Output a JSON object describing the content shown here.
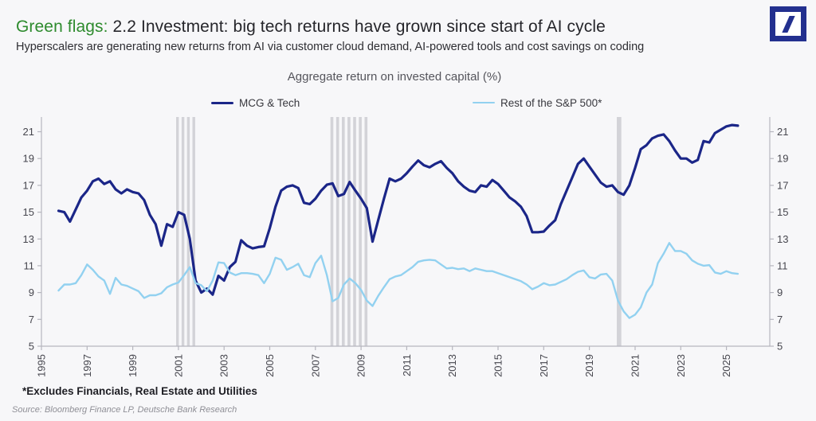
{
  "header": {
    "title_highlight": "Green flags:",
    "title_rest": " 2.2 Investment: big tech returns have grown since start of AI cycle",
    "subtitle": "Hyperscalers are generating new returns from AI via customer cloud demand, AI-powered tools and cost savings on coding",
    "logo_icon": "deutsche-bank-slash-icon",
    "logo_color": "#23308f"
  },
  "chart_data": {
    "type": "line",
    "title": "Aggregate return on invested capital (%)",
    "x_unit": "year, quarterly observations",
    "x_start": 1995.75,
    "x_step": 0.25,
    "xlim": [
      1995,
      2026.9
    ],
    "ylim": [
      5,
      22.1
    ],
    "yticks": [
      5,
      7,
      9,
      11,
      13,
      15,
      17,
      19,
      21
    ],
    "xticks": [
      1995,
      1997,
      1999,
      2001,
      2003,
      2005,
      2007,
      2009,
      2011,
      2013,
      2015,
      2017,
      2019,
      2021,
      2023,
      2025
    ],
    "grid": false,
    "legend_position": "top",
    "axis_color": "#b6b6be",
    "tick_label_color": "#46464e",
    "recession_band_color": "#d3d3d8",
    "recessions": [
      {
        "start": 2000.9,
        "end": 2001.85,
        "stripes": 4
      },
      {
        "start": 2007.66,
        "end": 2009.4,
        "stripes": 7
      },
      {
        "start": 2020.2,
        "end": 2020.45,
        "stripes": 1
      }
    ],
    "series": [
      {
        "name": "MCG & Tech",
        "color": "#1b2688",
        "width": 3.2,
        "values": [
          15.1,
          15.0,
          14.3,
          15.2,
          16.1,
          16.6,
          17.3,
          17.5,
          17.1,
          17.3,
          16.7,
          16.4,
          16.7,
          16.5,
          16.4,
          15.9,
          14.8,
          14.1,
          12.5,
          14.1,
          13.9,
          15.0,
          14.8,
          13.0,
          9.9,
          9.0,
          9.3,
          8.85,
          10.25,
          9.9,
          10.9,
          11.3,
          12.9,
          12.5,
          12.3,
          12.4,
          12.45,
          13.8,
          15.4,
          16.6,
          16.9,
          17.0,
          16.8,
          15.7,
          15.6,
          16.0,
          16.6,
          17.05,
          17.15,
          16.2,
          16.35,
          17.25,
          16.6,
          16.0,
          15.3,
          12.8,
          14.4,
          16.0,
          17.5,
          17.3,
          17.5,
          17.9,
          18.4,
          18.85,
          18.5,
          18.35,
          18.6,
          18.8,
          18.3,
          17.9,
          17.3,
          16.9,
          16.6,
          16.5,
          17.0,
          16.9,
          17.4,
          17.1,
          16.6,
          16.1,
          15.8,
          15.4,
          14.7,
          13.5,
          13.5,
          13.55,
          14.0,
          14.4,
          15.6,
          16.6,
          17.6,
          18.6,
          19.0,
          18.4,
          17.8,
          17.2,
          16.9,
          17.0,
          16.5,
          16.3,
          17.0,
          18.3,
          19.7,
          20.0,
          20.5,
          20.7,
          20.8,
          20.3,
          19.6,
          19.0,
          19.0,
          18.7,
          18.9,
          20.3,
          20.2,
          20.9,
          21.15,
          21.4,
          21.5,
          21.45
        ]
      },
      {
        "name": "Rest of the S&P 500*",
        "color": "#92d1f0",
        "width": 2.4,
        "values": [
          9.15,
          9.6,
          9.6,
          9.7,
          10.3,
          11.1,
          10.7,
          10.2,
          9.9,
          8.9,
          10.1,
          9.6,
          9.5,
          9.3,
          9.1,
          8.6,
          8.8,
          8.8,
          8.95,
          9.4,
          9.6,
          9.75,
          10.3,
          10.9,
          9.7,
          9.55,
          9.1,
          9.9,
          11.25,
          11.2,
          10.5,
          10.3,
          10.45,
          10.45,
          10.4,
          10.3,
          9.7,
          10.4,
          11.6,
          11.45,
          10.7,
          10.9,
          11.15,
          10.3,
          10.15,
          11.2,
          11.75,
          10.3,
          8.35,
          8.6,
          9.6,
          10.05,
          9.7,
          9.2,
          8.4,
          8.0,
          8.75,
          9.4,
          10.0,
          10.2,
          10.3,
          10.6,
          10.9,
          11.3,
          11.4,
          11.45,
          11.4,
          11.1,
          10.8,
          10.85,
          10.75,
          10.8,
          10.6,
          10.8,
          10.7,
          10.6,
          10.6,
          10.45,
          10.3,
          10.15,
          10.0,
          9.85,
          9.6,
          9.25,
          9.45,
          9.7,
          9.55,
          9.6,
          9.8,
          10.0,
          10.3,
          10.55,
          10.65,
          10.15,
          10.05,
          10.35,
          10.4,
          9.9,
          8.4,
          7.6,
          7.1,
          7.35,
          7.9,
          9.0,
          9.6,
          11.2,
          11.9,
          12.7,
          12.1,
          12.1,
          11.9,
          11.4,
          11.15,
          11.0,
          11.05,
          10.5,
          10.4,
          10.6,
          10.45,
          10.4
        ]
      }
    ]
  },
  "notes": {
    "footnote": "*Excludes Financials, Real Estate and Utilities",
    "source": "Source: Bloomberg Finance LP, Deutsche Bank Research"
  }
}
